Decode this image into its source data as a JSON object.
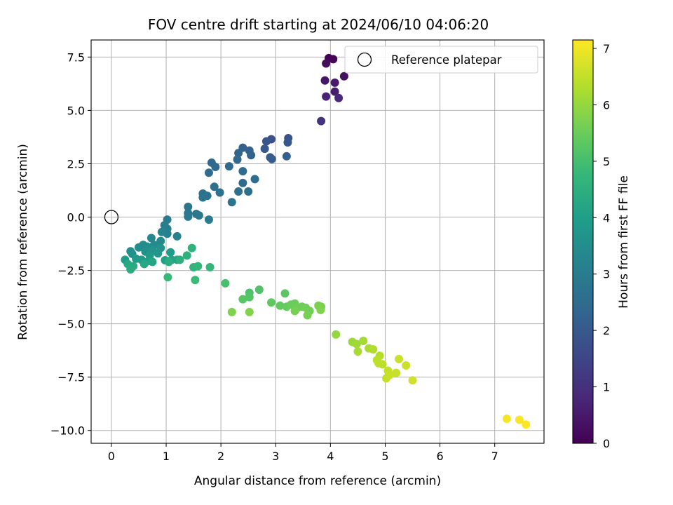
{
  "chart_data": {
    "type": "scatter",
    "title": "FOV centre drift starting at 2024/06/10 04:06:20",
    "xlabel": "Angular distance from reference (arcmin)",
    "ylabel": "Rotation from reference (arcmin)",
    "xlim": [
      -0.37,
      7.9
    ],
    "ylim": [
      -10.6,
      8.3
    ],
    "xticks": [
      0,
      1,
      2,
      3,
      4,
      5,
      6,
      7
    ],
    "xtick_labels": [
      "0",
      "1",
      "2",
      "3",
      "4",
      "5",
      "6",
      "7"
    ],
    "yticks": [
      7.5,
      5.0,
      2.5,
      0.0,
      -2.5,
      -5.0,
      -7.5,
      -10.0
    ],
    "ytick_labels": [
      "7.5",
      "5.0",
      "2.5",
      "0.0",
      "−2.5",
      "−5.0",
      "−7.5",
      "−10.0"
    ],
    "grid": true,
    "legend": {
      "location": "top-right",
      "entries": [
        "Reference platepar"
      ]
    },
    "reference": {
      "x": 0,
      "y": 0,
      "label": "Reference platepar",
      "marker": "open-circle"
    },
    "colorbar": {
      "label": "Hours from first FF file",
      "colormap": "viridis",
      "range": [
        0,
        7.15
      ],
      "ticks": [
        0,
        1,
        2,
        3,
        4,
        5,
        6,
        7
      ],
      "tick_labels": [
        "0",
        "1",
        "2",
        "3",
        "4",
        "5",
        "6",
        "7"
      ],
      "colors": [
        "#440154",
        "#482878",
        "#3e4989",
        "#31688e",
        "#26828e",
        "#1f9e89",
        "#35b779",
        "#6ece58",
        "#b5de2b",
        "#fde725"
      ]
    },
    "points": [
      {
        "x": 3.97,
        "y": 7.45,
        "h": 0.05
      },
      {
        "x": 4.05,
        "y": 7.4,
        "h": 0.1
      },
      {
        "x": 3.92,
        "y": 7.2,
        "h": 0.2
      },
      {
        "x": 4.25,
        "y": 6.6,
        "h": 0.3
      },
      {
        "x": 3.9,
        "y": 6.4,
        "h": 0.4
      },
      {
        "x": 4.08,
        "y": 6.3,
        "h": 0.5
      },
      {
        "x": 4.08,
        "y": 5.88,
        "h": 0.6
      },
      {
        "x": 3.92,
        "y": 5.65,
        "h": 0.7
      },
      {
        "x": 4.15,
        "y": 5.58,
        "h": 0.8
      },
      {
        "x": 3.83,
        "y": 4.5,
        "h": 1.05
      },
      {
        "x": 2.92,
        "y": 3.65,
        "h": 1.8
      },
      {
        "x": 3.23,
        "y": 3.7,
        "h": 1.85
      },
      {
        "x": 2.83,
        "y": 3.55,
        "h": 1.9
      },
      {
        "x": 3.22,
        "y": 3.5,
        "h": 1.95
      },
      {
        "x": 2.8,
        "y": 3.2,
        "h": 2.0
      },
      {
        "x": 2.9,
        "y": 2.8,
        "h": 2.05
      },
      {
        "x": 2.93,
        "y": 2.72,
        "h": 2.1
      },
      {
        "x": 3.2,
        "y": 2.85,
        "h": 2.15
      },
      {
        "x": 2.4,
        "y": 3.25,
        "h": 2.2
      },
      {
        "x": 2.52,
        "y": 3.12,
        "h": 2.25
      },
      {
        "x": 2.32,
        "y": 3.0,
        "h": 2.3
      },
      {
        "x": 2.55,
        "y": 2.9,
        "h": 2.3
      },
      {
        "x": 2.3,
        "y": 2.7,
        "h": 2.35
      },
      {
        "x": 2.15,
        "y": 2.38,
        "h": 2.4
      },
      {
        "x": 1.83,
        "y": 2.55,
        "h": 2.4
      },
      {
        "x": 1.9,
        "y": 2.35,
        "h": 2.45
      },
      {
        "x": 2.4,
        "y": 2.15,
        "h": 2.5
      },
      {
        "x": 1.78,
        "y": 2.08,
        "h": 2.5
      },
      {
        "x": 2.62,
        "y": 1.78,
        "h": 2.55
      },
      {
        "x": 2.4,
        "y": 1.6,
        "h": 2.55
      },
      {
        "x": 1.88,
        "y": 1.42,
        "h": 2.6
      },
      {
        "x": 2.5,
        "y": 1.2,
        "h": 2.6
      },
      {
        "x": 2.32,
        "y": 1.2,
        "h": 2.65
      },
      {
        "x": 1.98,
        "y": 1.15,
        "h": 2.65
      },
      {
        "x": 1.67,
        "y": 1.1,
        "h": 2.7
      },
      {
        "x": 1.75,
        "y": 1.0,
        "h": 2.7
      },
      {
        "x": 1.67,
        "y": 0.92,
        "h": 2.75
      },
      {
        "x": 2.2,
        "y": 0.7,
        "h": 2.75
      },
      {
        "x": 1.4,
        "y": 0.48,
        "h": 2.8
      },
      {
        "x": 1.4,
        "y": 0.18,
        "h": 2.85
      },
      {
        "x": 1.55,
        "y": 0.15,
        "h": 2.85
      },
      {
        "x": 1.4,
        "y": 0.02,
        "h": 2.9
      },
      {
        "x": 1.6,
        "y": 0.08,
        "h": 2.9
      },
      {
        "x": 1.78,
        "y": -0.12,
        "h": 2.95
      },
      {
        "x": 1.02,
        "y": -0.12,
        "h": 3.0
      },
      {
        "x": 0.97,
        "y": -0.38,
        "h": 3.05
      },
      {
        "x": 1.02,
        "y": -0.55,
        "h": 3.1
      },
      {
        "x": 1.02,
        "y": -0.78,
        "h": 3.15
      },
      {
        "x": 1.2,
        "y": -0.9,
        "h": 3.2
      },
      {
        "x": 0.92,
        "y": -0.7,
        "h": 3.25
      },
      {
        "x": 0.73,
        "y": -0.98,
        "h": 3.3
      },
      {
        "x": 0.9,
        "y": -1.12,
        "h": 3.35
      },
      {
        "x": 0.78,
        "y": -1.3,
        "h": 3.4
      },
      {
        "x": 0.58,
        "y": -1.3,
        "h": 3.45
      },
      {
        "x": 0.65,
        "y": -1.38,
        "h": 3.5
      },
      {
        "x": 0.5,
        "y": -1.42,
        "h": 3.5
      },
      {
        "x": 0.35,
        "y": -1.6,
        "h": 3.55
      },
      {
        "x": 0.62,
        "y": -1.62,
        "h": 3.6
      },
      {
        "x": 0.38,
        "y": -1.72,
        "h": 3.6
      },
      {
        "x": 0.9,
        "y": -1.45,
        "h": 3.65
      },
      {
        "x": 0.75,
        "y": -1.55,
        "h": 3.7
      },
      {
        "x": 0.85,
        "y": -1.7,
        "h": 3.75
      },
      {
        "x": 0.7,
        "y": -1.8,
        "h": 3.8
      },
      {
        "x": 1.08,
        "y": -1.65,
        "h": 3.85
      },
      {
        "x": 0.45,
        "y": -1.95,
        "h": 3.9
      },
      {
        "x": 0.55,
        "y": -2.0,
        "h": 3.9
      },
      {
        "x": 0.25,
        "y": -2.0,
        "h": 3.95
      },
      {
        "x": 0.68,
        "y": -2.05,
        "h": 4.0
      },
      {
        "x": 0.98,
        "y": -2.02,
        "h": 4.05
      },
      {
        "x": 1.1,
        "y": -2.0,
        "h": 4.1
      },
      {
        "x": 1.2,
        "y": -2.0,
        "h": 4.15
      },
      {
        "x": 0.75,
        "y": -2.1,
        "h": 4.2
      },
      {
        "x": 0.6,
        "y": -2.2,
        "h": 4.25
      },
      {
        "x": 0.3,
        "y": -2.2,
        "h": 4.3
      },
      {
        "x": 0.4,
        "y": -2.3,
        "h": 4.35
      },
      {
        "x": 0.35,
        "y": -2.45,
        "h": 4.4
      },
      {
        "x": 1.05,
        "y": -2.1,
        "h": 4.45
      },
      {
        "x": 1.25,
        "y": -2.0,
        "h": 4.5
      },
      {
        "x": 1.38,
        "y": -1.8,
        "h": 4.55
      },
      {
        "x": 1.47,
        "y": -1.45,
        "h": 4.6
      },
      {
        "x": 1.5,
        "y": -2.35,
        "h": 4.65
      },
      {
        "x": 1.58,
        "y": -2.3,
        "h": 4.7
      },
      {
        "x": 1.8,
        "y": -2.35,
        "h": 4.75
      },
      {
        "x": 1.03,
        "y": -2.82,
        "h": 4.8
      },
      {
        "x": 1.53,
        "y": -2.95,
        "h": 4.85
      },
      {
        "x": 2.08,
        "y": -3.1,
        "h": 5.05
      },
      {
        "x": 2.52,
        "y": -3.55,
        "h": 5.1
      },
      {
        "x": 2.7,
        "y": -3.4,
        "h": 5.15
      },
      {
        "x": 2.52,
        "y": -3.75,
        "h": 5.2
      },
      {
        "x": 2.4,
        "y": -3.85,
        "h": 5.25
      },
      {
        "x": 3.17,
        "y": -3.58,
        "h": 5.3
      },
      {
        "x": 2.92,
        "y": -4.0,
        "h": 5.35
      },
      {
        "x": 3.08,
        "y": -4.15,
        "h": 5.4
      },
      {
        "x": 3.2,
        "y": -4.2,
        "h": 5.45
      },
      {
        "x": 3.28,
        "y": -4.1,
        "h": 5.5
      },
      {
        "x": 3.35,
        "y": -4.05,
        "h": 5.5
      },
      {
        "x": 3.4,
        "y": -4.25,
        "h": 5.55
      },
      {
        "x": 3.48,
        "y": -4.2,
        "h": 5.55
      },
      {
        "x": 3.55,
        "y": -4.25,
        "h": 5.6
      },
      {
        "x": 3.62,
        "y": -4.4,
        "h": 5.6
      },
      {
        "x": 3.58,
        "y": -4.6,
        "h": 5.65
      },
      {
        "x": 3.35,
        "y": -4.4,
        "h": 5.65
      },
      {
        "x": 3.78,
        "y": -4.15,
        "h": 5.7
      },
      {
        "x": 3.83,
        "y": -4.2,
        "h": 5.7
      },
      {
        "x": 3.82,
        "y": -4.35,
        "h": 5.75
      },
      {
        "x": 2.2,
        "y": -4.45,
        "h": 5.75
      },
      {
        "x": 2.52,
        "y": -4.45,
        "h": 5.8
      },
      {
        "x": 4.1,
        "y": -5.5,
        "h": 6.0
      },
      {
        "x": 4.4,
        "y": -5.85,
        "h": 6.05
      },
      {
        "x": 4.48,
        "y": -5.95,
        "h": 6.1
      },
      {
        "x": 4.6,
        "y": -5.8,
        "h": 6.15
      },
      {
        "x": 4.5,
        "y": -6.3,
        "h": 6.2
      },
      {
        "x": 4.7,
        "y": -6.15,
        "h": 6.25
      },
      {
        "x": 4.78,
        "y": -6.2,
        "h": 6.3
      },
      {
        "x": 4.9,
        "y": -6.5,
        "h": 6.35
      },
      {
        "x": 4.85,
        "y": -6.7,
        "h": 6.4
      },
      {
        "x": 4.95,
        "y": -6.9,
        "h": 6.4
      },
      {
        "x": 4.88,
        "y": -6.85,
        "h": 6.45
      },
      {
        "x": 5.05,
        "y": -7.2,
        "h": 6.5
      },
      {
        "x": 5.02,
        "y": -7.55,
        "h": 6.5
      },
      {
        "x": 5.08,
        "y": -7.4,
        "h": 6.55
      },
      {
        "x": 5.2,
        "y": -7.3,
        "h": 6.55
      },
      {
        "x": 5.25,
        "y": -6.65,
        "h": 6.6
      },
      {
        "x": 5.38,
        "y": -6.95,
        "h": 6.6
      },
      {
        "x": 5.5,
        "y": -7.65,
        "h": 6.65
      },
      {
        "x": 7.22,
        "y": -9.45,
        "h": 7.05
      },
      {
        "x": 7.45,
        "y": -9.5,
        "h": 7.1
      },
      {
        "x": 7.57,
        "y": -9.72,
        "h": 7.15
      }
    ]
  }
}
